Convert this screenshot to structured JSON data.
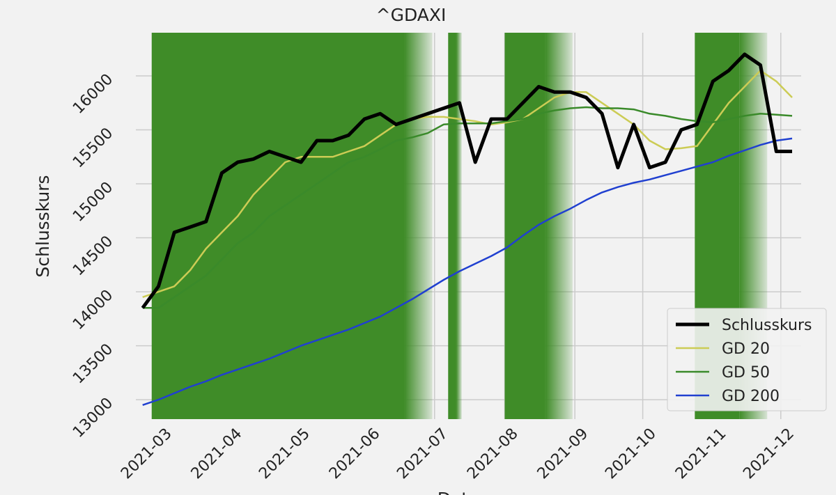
{
  "chart_data": {
    "type": "line",
    "title": "^GDAXI",
    "x_label": "Datum",
    "y_label": "Schlusskurs",
    "x": [
      "2021-02-22",
      "2021-03-01",
      "2021-03-08",
      "2021-03-15",
      "2021-03-22",
      "2021-03-29",
      "2021-04-05",
      "2021-04-12",
      "2021-04-19",
      "2021-04-26",
      "2021-05-03",
      "2021-05-10",
      "2021-05-17",
      "2021-05-24",
      "2021-05-31",
      "2021-06-07",
      "2021-06-14",
      "2021-06-21",
      "2021-06-28",
      "2021-07-05",
      "2021-07-12",
      "2021-07-19",
      "2021-07-26",
      "2021-08-02",
      "2021-08-09",
      "2021-08-16",
      "2021-08-23",
      "2021-08-30",
      "2021-09-06",
      "2021-09-13",
      "2021-09-20",
      "2021-09-27",
      "2021-10-04",
      "2021-10-11",
      "2021-10-18",
      "2021-10-25",
      "2021-11-01",
      "2021-11-08",
      "2021-11-15",
      "2021-11-22",
      "2021-11-29",
      "2021-12-06"
    ],
    "series": [
      {
        "name": "Schlusskurs",
        "color": "#000000",
        "width": 5,
        "values": [
          13850,
          14050,
          14550,
          14600,
          14650,
          15100,
          15200,
          15230,
          15300,
          15250,
          15200,
          15400,
          15400,
          15450,
          15600,
          15650,
          15550,
          15600,
          15650,
          15700,
          15750,
          15200,
          15600,
          15600,
          15750,
          15900,
          15850,
          15850,
          15800,
          15650,
          15150,
          15550,
          15150,
          15200,
          15500,
          15550,
          15950,
          16050,
          16200,
          16100,
          15300,
          15300
        ]
      },
      {
        "name": "GD 20",
        "color": "#cccc55",
        "width": 2.5,
        "values": [
          13950,
          14000,
          14050,
          14200,
          14400,
          14550,
          14700,
          14900,
          15050,
          15200,
          15250,
          15250,
          15250,
          15300,
          15350,
          15450,
          15550,
          15600,
          15620,
          15620,
          15600,
          15580,
          15550,
          15570,
          15600,
          15700,
          15800,
          15850,
          15850,
          15750,
          15650,
          15550,
          15400,
          15320,
          15330,
          15350,
          15550,
          15750,
          15900,
          16050,
          15950,
          15800
        ]
      },
      {
        "name": "GD 50",
        "color": "#3a8a2a",
        "width": 2.5,
        "values": [
          13850,
          13850,
          13950,
          14050,
          14150,
          14300,
          14450,
          14550,
          14700,
          14800,
          14900,
          15000,
          15100,
          15200,
          15250,
          15320,
          15400,
          15430,
          15470,
          15550,
          15560,
          15560,
          15560,
          15580,
          15600,
          15650,
          15680,
          15700,
          15710,
          15700,
          15700,
          15690,
          15650,
          15630,
          15600,
          15580,
          15570,
          15600,
          15630,
          15650,
          15640,
          15630
        ]
      },
      {
        "name": "GD 200",
        "color": "#2040d0",
        "width": 2.5,
        "values": [
          12950,
          13000,
          13060,
          13120,
          13170,
          13230,
          13280,
          13330,
          13380,
          13440,
          13500,
          13550,
          13600,
          13650,
          13710,
          13770,
          13850,
          13930,
          14020,
          14110,
          14190,
          14260,
          14330,
          14410,
          14520,
          14620,
          14700,
          14770,
          14850,
          14920,
          14970,
          15010,
          15040,
          15080,
          15120,
          15160,
          15200,
          15260,
          15310,
          15360,
          15400,
          15420
        ]
      }
    ],
    "shaded_ranges": [
      [
        "2021-02-26",
        "2021-06-30"
      ],
      [
        "2021-07-07",
        "2021-07-13"
      ],
      [
        "2021-08-01",
        "2021-08-31"
      ],
      [
        "2021-10-24",
        "2021-11-25"
      ]
    ],
    "shade_color": "#3f8c28",
    "xlim": [
      "2021-02-19",
      "2021-12-10"
    ],
    "xticks": [
      "2021-03",
      "2021-04",
      "2021-05",
      "2021-06",
      "2021-07",
      "2021-08",
      "2021-09",
      "2021-10",
      "2021-11",
      "2021-12"
    ],
    "ylim": [
      12820,
      16400
    ],
    "yticks": [
      13000,
      13500,
      14000,
      14500,
      15000,
      15500,
      16000
    ],
    "grid": true,
    "legend": "lower right"
  }
}
